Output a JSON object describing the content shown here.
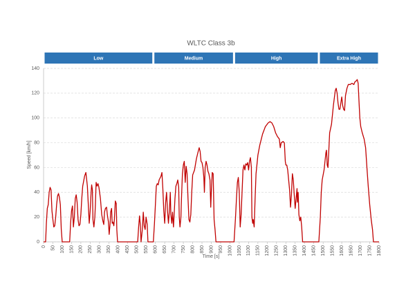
{
  "chart_data": {
    "type": "line",
    "title": "WLTC Class 3b",
    "xlabel": "Time [s]",
    "ylabel": "Speed [km/h]",
    "phases": [
      {
        "name": "Low",
        "start": 0,
        "end": 589
      },
      {
        "name": "Medium",
        "start": 589,
        "end": 1022
      },
      {
        "name": "High",
        "start": 1022,
        "end": 1477
      },
      {
        "name": "Extra High",
        "start": 1477,
        "end": 1800
      }
    ],
    "phase_color": "#2e75b6",
    "x": [
      0,
      11,
      15,
      20,
      25,
      30,
      35,
      40,
      45,
      50,
      55,
      60,
      65,
      70,
      75,
      80,
      85,
      90,
      95,
      100,
      140,
      145,
      150,
      155,
      160,
      165,
      170,
      175,
      180,
      185,
      190,
      195,
      200,
      205,
      210,
      220,
      227,
      235,
      240,
      245,
      250,
      255,
      258,
      262,
      265,
      270,
      275,
      278,
      282,
      287,
      292,
      297,
      305,
      312,
      318,
      323,
      327,
      332,
      338,
      342,
      348,
      352,
      357,
      360,
      365,
      368,
      372,
      377,
      380,
      385,
      390,
      393,
      397,
      505,
      510,
      515,
      520,
      523,
      530,
      535,
      540,
      545,
      550,
      556,
      560,
      589,
      595,
      600,
      605,
      610,
      615,
      620,
      630,
      635,
      640,
      645,
      650,
      655,
      660,
      665,
      670,
      675,
      680,
      683,
      688,
      692,
      697,
      700,
      705,
      710,
      715,
      720,
      725,
      728,
      732,
      737,
      740,
      745,
      750,
      755,
      760,
      765,
      770,
      775,
      780,
      785,
      790,
      795,
      800,
      810,
      820,
      828,
      835,
      840,
      845,
      850,
      855,
      860,
      863,
      867,
      872,
      877,
      882,
      887,
      893,
      897,
      900,
      905,
      910,
      915,
      920,
      925,
      1022,
      1030,
      1035,
      1040,
      1045,
      1050,
      1055,
      1060,
      1065,
      1070,
      1075,
      1080,
      1085,
      1090,
      1095,
      1100,
      1105,
      1110,
      1115,
      1118,
      1122,
      1125,
      1130,
      1135,
      1140,
      1150,
      1160,
      1175,
      1190,
      1205,
      1215,
      1225,
      1235,
      1245,
      1255,
      1265,
      1270,
      1275,
      1285,
      1292,
      1297,
      1300,
      1305,
      1310,
      1315,
      1320,
      1325,
      1330,
      1335,
      1340,
      1345,
      1350,
      1355,
      1360,
      1362,
      1366,
      1370,
      1375,
      1380,
      1385,
      1390,
      1477,
      1485,
      1490,
      1495,
      1505,
      1510,
      1515,
      1518,
      1522,
      1526,
      1530,
      1535,
      1545,
      1555,
      1565,
      1570,
      1575,
      1580,
      1585,
      1590,
      1595,
      1600,
      1605,
      1610,
      1615,
      1620,
      1628,
      1635,
      1645,
      1655,
      1665,
      1670,
      1678,
      1683,
      1688,
      1692,
      1697,
      1702,
      1710,
      1720,
      1728,
      1735,
      1742,
      1750,
      1758,
      1765,
      1770,
      1800
    ],
    "series": [
      {
        "color": "#c00000",
        "values": [
          0,
          0,
          15,
          27,
          30,
          40,
          44,
          42,
          25,
          18,
          12,
          13,
          20,
          30,
          37,
          39,
          36,
          30,
          10,
          0,
          0,
          15,
          25,
          29,
          12,
          20,
          35,
          38,
          32,
          18,
          13,
          14,
          22,
          35,
          45,
          53,
          56,
          45,
          30,
          15,
          25,
          40,
          46,
          42,
          18,
          12,
          20,
          30,
          48,
          45,
          47,
          44,
          35,
          22,
          17,
          14,
          24,
          27,
          28,
          22,
          16,
          6,
          15,
          24,
          27,
          15,
          16,
          13,
          18,
          33,
          31,
          10,
          0,
          0,
          12,
          21,
          12,
          0,
          10,
          24,
          13,
          10,
          20,
          14,
          0,
          0,
          15,
          30,
          45,
          47,
          46,
          50,
          53,
          56,
          43,
          25,
          15,
          32,
          40,
          25,
          15,
          25,
          40,
          22,
          15,
          24,
          12,
          20,
          35,
          45,
          47,
          50,
          44,
          20,
          12,
          20,
          35,
          55,
          62,
          65,
          48,
          61,
          55,
          35,
          18,
          16,
          22,
          40,
          54,
          58,
          67,
          72,
          76,
          73,
          65,
          64,
          60,
          52,
          40,
          60,
          65,
          62,
          57,
          55,
          50,
          28,
          40,
          56,
          55,
          18,
          10,
          0,
          0,
          20,
          35,
          48,
          52,
          40,
          12,
          22,
          40,
          58,
          62,
          58,
          63,
          62,
          64,
          58,
          65,
          68,
          60,
          20,
          15,
          18,
          12,
          35,
          55,
          70,
          78,
          87,
          93,
          96,
          97,
          96,
          93,
          88,
          85,
          83,
          76,
          80,
          81,
          80,
          65,
          62,
          62,
          58,
          50,
          42,
          28,
          38,
          55,
          50,
          38,
          27,
          35,
          43,
          32,
          40,
          22,
          17,
          20,
          12,
          0,
          0,
          20,
          40,
          50,
          58,
          65,
          72,
          74,
          62,
          60,
          72,
          88,
          95,
          110,
          122,
          124,
          120,
          112,
          107,
          107,
          112,
          117,
          110,
          107,
          106,
          118,
          124,
          127,
          127,
          128,
          127,
          129,
          130,
          131,
          128,
          115,
          100,
          93,
          88,
          83,
          76,
          60,
          45,
          30,
          18,
          10,
          0,
          0
        ]
      }
    ],
    "xlim": [
      0,
      1800
    ],
    "ylim": [
      0,
      140
    ],
    "xticks": [
      0,
      50,
      100,
      150,
      200,
      250,
      300,
      350,
      400,
      450,
      500,
      550,
      600,
      650,
      700,
      750,
      800,
      850,
      900,
      950,
      1000,
      1050,
      1100,
      1150,
      1200,
      1250,
      1300,
      1350,
      1400,
      1450,
      1500,
      1550,
      1600,
      1650,
      1700,
      1750,
      1800
    ],
    "yticks": [
      0,
      20,
      40,
      60,
      80,
      100,
      120,
      140
    ],
    "grid": true
  }
}
